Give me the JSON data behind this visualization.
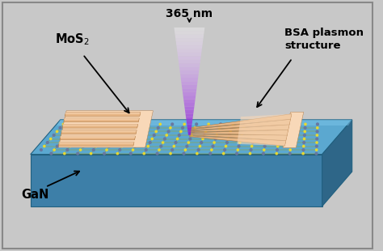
{
  "bg_color": "#c8c8c8",
  "border_color": "#888888",
  "label_365nm": "365 nm",
  "label_MoS2": "MoS$_2$",
  "label_GaN": "GaN",
  "label_BSA": "BSA plasmon\nstructure",
  "gan_top_color": "#5ba8d0",
  "gan_top_light": "#7cc4e8",
  "gan_front_color": "#3d7fa8",
  "gan_right_color": "#2e6688",
  "mos2_yellow": "#e8d830",
  "mos2_gray": "#6878a0",
  "antenna_base": "#e8b888",
  "antenna_light": "#f8d8b8",
  "antenna_dark": "#b07840",
  "antenna_shadow": "#c89060",
  "beam_white": "#ffffff",
  "beam_purple": "#9940bb",
  "figsize": [
    4.74,
    3.1
  ],
  "dpi": 100
}
